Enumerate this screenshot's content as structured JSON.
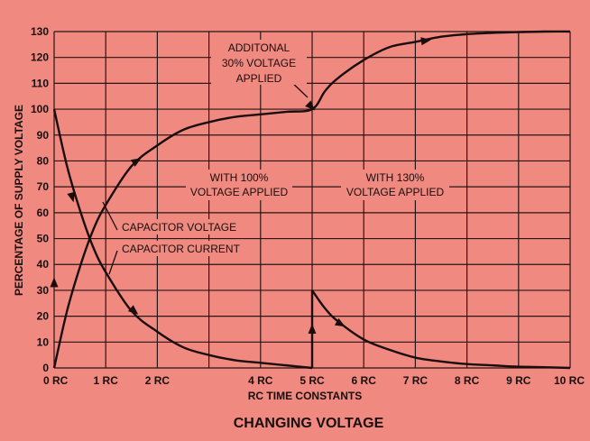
{
  "chart_data": {
    "type": "line",
    "title": "CHANGING VOLTAGE",
    "xlabel": "RC TIME CONSTANTS",
    "ylabel": "PERCENTAGE OF SUPPLY VOLTAGE",
    "xlim": [
      0,
      10
    ],
    "ylim": [
      0,
      130
    ],
    "x_ticks": [
      0,
      1,
      2,
      4,
      5,
      6,
      7,
      8,
      9,
      10
    ],
    "x_tick_labels": [
      "0 RC",
      "1 RC",
      "2 RC",
      "4 RC",
      "5 RC",
      "6 RC",
      "7 RC",
      "8 RC",
      "9 RC",
      "10 RC"
    ],
    "y_ticks": [
      0,
      10,
      20,
      30,
      40,
      50,
      60,
      70,
      80,
      90,
      100,
      110,
      120,
      130
    ],
    "grid": true,
    "series": [
      {
        "name": "CAPACITOR VOLTAGE",
        "x": [
          0,
          0.25,
          0.5,
          0.75,
          1,
          1.5,
          2,
          2.5,
          3,
          3.5,
          4,
          4.5,
          5,
          5.25,
          5.5,
          6,
          6.5,
          7,
          7.5,
          8,
          8.5,
          9,
          9.5,
          10
        ],
        "values": [
          0,
          22,
          39,
          53,
          63,
          78,
          86,
          92,
          95,
          97,
          98,
          99,
          100,
          107,
          112,
          119,
          124,
          126,
          128,
          129,
          129.5,
          129.8,
          130,
          130
        ]
      },
      {
        "name": "CAPACITOR CURRENT",
        "x": [
          0,
          0.25,
          0.5,
          0.75,
          1,
          1.5,
          2,
          2.5,
          3,
          3.5,
          4,
          4.5,
          5,
          5,
          5.25,
          5.5,
          6,
          6.5,
          7,
          7.5,
          8,
          8.5,
          9,
          9.5,
          10
        ],
        "values": [
          100,
          78,
          61,
          47,
          37,
          22,
          14,
          8,
          5,
          3,
          2,
          1,
          0,
          30,
          23,
          18,
          11,
          7,
          4,
          2.5,
          1.5,
          1,
          0.5,
          0.3,
          0
        ]
      }
    ],
    "annotations": {
      "additional_line1": "ADDITONAL",
      "additional_line2": "30% VOLTAGE",
      "additional_line3": "APPLIED",
      "with100_line1": "WITH 100%",
      "with100_line2": "VOLTAGE APPLIED",
      "with130_line1": "WITH 130%",
      "with130_line2": "VOLTAGE APPLIED",
      "cap_voltage": "CAPACITOR VOLTAGE",
      "cap_current": "CAPACITOR CURRENT"
    }
  }
}
